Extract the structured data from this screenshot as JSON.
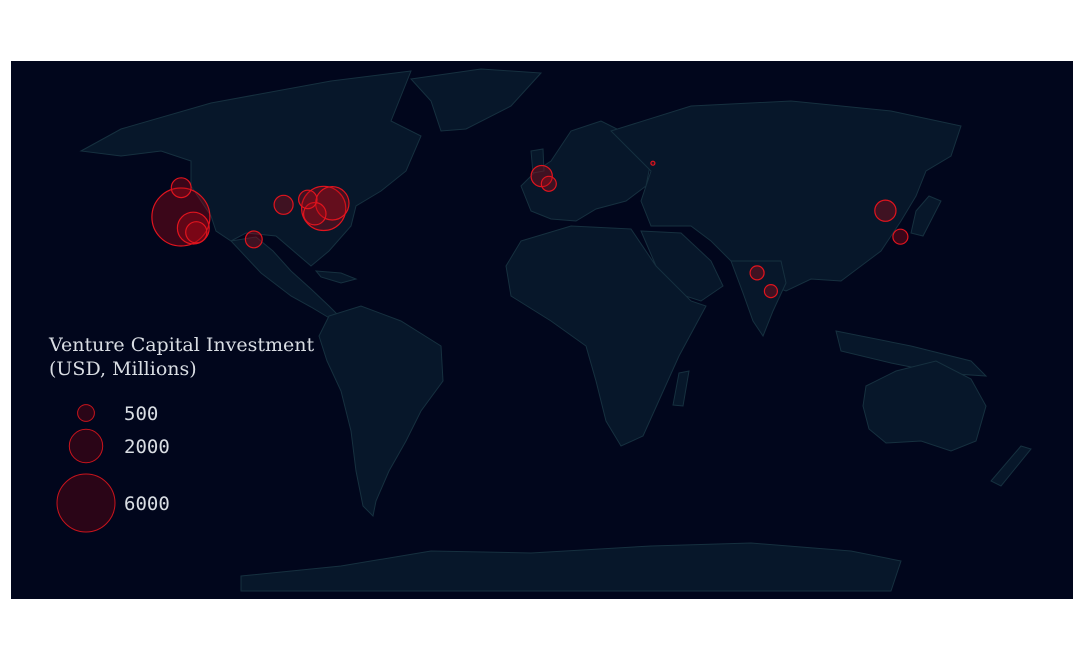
{
  "legend": {
    "title_line1": "Venture Capital Investment",
    "title_line2": "(USD, Millions)",
    "entries": [
      {
        "label": "500",
        "value": 500
      },
      {
        "label": "2000",
        "value": 2000
      },
      {
        "label": "6000",
        "value": 6000
      }
    ]
  },
  "colors": {
    "background": "#01061c",
    "land": "#07172a",
    "borders": "#16303f",
    "bubble_stroke": "#e0141e",
    "bubble_fill": "rgba(170,10,20,0.35)",
    "legend_text": "#d9dde3"
  },
  "chart_data": {
    "type": "scatter",
    "projection": "equirectangular",
    "size_encoding": "Venture Capital Investment (USD, Millions)",
    "points": [
      {
        "lon": -122.4,
        "lat": 37.8,
        "value": 6000
      },
      {
        "lon": -118.2,
        "lat": 34.1,
        "value": 1800
      },
      {
        "lon": -117.2,
        "lat": 32.7,
        "value": 800
      },
      {
        "lon": -122.3,
        "lat": 47.6,
        "value": 700
      },
      {
        "lon": -97.7,
        "lat": 30.3,
        "value": 500
      },
      {
        "lon": -87.6,
        "lat": 41.9,
        "value": 650
      },
      {
        "lon": -74.0,
        "lat": 40.7,
        "value": 3500
      },
      {
        "lon": -71.1,
        "lat": 42.4,
        "value": 2000
      },
      {
        "lon": -77.0,
        "lat": 38.9,
        "value": 900
      },
      {
        "lon": -79.4,
        "lat": 43.7,
        "value": 600
      },
      {
        "lon": -0.1,
        "lat": 51.5,
        "value": 800
      },
      {
        "lon": 2.3,
        "lat": 48.9,
        "value": 400
      },
      {
        "lon": 37.6,
        "lat": 55.8,
        "value": 20
      },
      {
        "lon": 116.4,
        "lat": 39.9,
        "value": 800
      },
      {
        "lon": 121.5,
        "lat": 31.2,
        "value": 400
      },
      {
        "lon": 72.9,
        "lat": 19.1,
        "value": 350
      },
      {
        "lon": 77.6,
        "lat": 13.0,
        "value": 300
      }
    ]
  }
}
